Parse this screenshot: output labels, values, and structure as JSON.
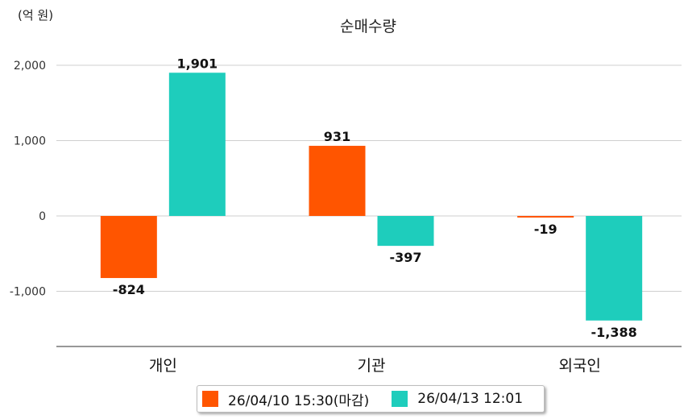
{
  "chart_data": {
    "type": "bar",
    "title": "순매수량",
    "unit": "(억 원)",
    "categories": [
      "개인",
      "기관",
      "외국인"
    ],
    "series": [
      {
        "name": "26/04/10 15:30(마감)",
        "color": "#FF5500",
        "values": [
          -824,
          931,
          -19
        ]
      },
      {
        "name": "26/04/13 12:01",
        "color": "#1ECDBC",
        "values": [
          1901,
          -397,
          -1388
        ]
      }
    ],
    "y_ticks": [
      2000,
      1000,
      0,
      -1000
    ],
    "y_tick_labels": [
      "2,000",
      "1,000",
      "0",
      "-1,000"
    ],
    "data_labels": [
      [
        "-824",
        "931",
        "-19"
      ],
      [
        "1,901",
        "-397",
        "-1,388"
      ]
    ],
    "ylim": [
      -1720,
      2130
    ],
    "grid": true,
    "legend_position": "bottom"
  }
}
